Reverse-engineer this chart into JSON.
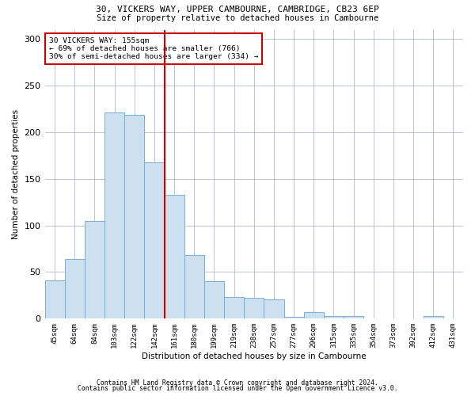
{
  "title1": "30, VICKERS WAY, UPPER CAMBOURNE, CAMBRIDGE, CB23 6EP",
  "title2": "Size of property relative to detached houses in Cambourne",
  "xlabel": "Distribution of detached houses by size in Cambourne",
  "ylabel": "Number of detached properties",
  "footer1": "Contains HM Land Registry data © Crown copyright and database right 2024.",
  "footer2": "Contains public sector information licensed under the Open Government Licence v3.0.",
  "annotation_line1": "30 VICKERS WAY: 155sqm",
  "annotation_line2": "← 69% of detached houses are smaller (766)",
  "annotation_line3": "30% of semi-detached houses are larger (334) →",
  "bar_labels": [
    "45sqm",
    "64sqm",
    "84sqm",
    "103sqm",
    "122sqm",
    "142sqm",
    "161sqm",
    "180sqm",
    "199sqm",
    "219sqm",
    "238sqm",
    "257sqm",
    "277sqm",
    "296sqm",
    "315sqm",
    "335sqm",
    "354sqm",
    "373sqm",
    "392sqm",
    "412sqm",
    "431sqm"
  ],
  "bar_values": [
    41,
    64,
    105,
    221,
    219,
    168,
    133,
    68,
    40,
    23,
    22,
    21,
    2,
    7,
    3,
    3,
    0,
    0,
    0,
    3,
    0
  ],
  "bar_color": "#cce0f0",
  "bar_edge_color": "#7aadd4",
  "vline_x_idx": 6,
  "vline_color": "#cc0000",
  "annotation_box_color": "#cc0000",
  "background_color": "#ffffff",
  "grid_color": "#b0b8d0",
  "ylim": [
    0,
    310
  ],
  "yticks": [
    0,
    50,
    100,
    150,
    200,
    250,
    300
  ]
}
